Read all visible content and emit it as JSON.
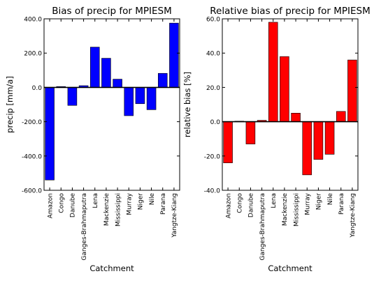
{
  "chart_data": [
    {
      "type": "bar",
      "title": "Bias of precip for MPIESM",
      "xlabel": "Catchment",
      "ylabel": "precip [mm/a]",
      "ylim": [
        -600,
        400
      ],
      "yticks": [
        -600,
        -400,
        -200,
        0,
        200,
        400
      ],
      "ytick_labels": [
        "-600.0",
        "-400.0",
        "-200.0",
        "0.0",
        "200.0",
        "400.0"
      ],
      "categories": [
        "Amazon",
        "Congo",
        "Danube",
        "Ganges-Brahmaputra",
        "Lena",
        "Mackenzie",
        "Mississippi",
        "Murray",
        "Niger",
        "Nile",
        "Parana",
        "Yangtze-Kiang"
      ],
      "values": [
        -540,
        5,
        -105,
        10,
        235,
        170,
        48,
        -165,
        -95,
        -130,
        82,
        375
      ],
      "bar_color": "#0000ff",
      "grid": false,
      "legend": "none"
    },
    {
      "type": "bar",
      "title": "Relative bias of precip for MPIESM",
      "xlabel": "Catchment",
      "ylabel": "relative bias [%]",
      "ylim": [
        -40,
        60
      ],
      "yticks": [
        -40,
        -20,
        0,
        20,
        40,
        60
      ],
      "ytick_labels": [
        "-40.0",
        "-20.0",
        "0.0",
        "20.0",
        "40.0",
        "60.0"
      ],
      "categories": [
        "Amazon",
        "Congo",
        "Danube",
        "Ganges-Brahmaputra",
        "Lena",
        "Mackenzie",
        "Mississippi",
        "Murray",
        "Niger",
        "Nile",
        "Parana",
        "Yangtze-Kiang"
      ],
      "values": [
        -24,
        0.3,
        -13,
        0.8,
        58,
        38,
        5,
        -31,
        -22,
        -19,
        6,
        36
      ],
      "bar_color": "#ff0000",
      "grid": false,
      "legend": "none"
    }
  ]
}
